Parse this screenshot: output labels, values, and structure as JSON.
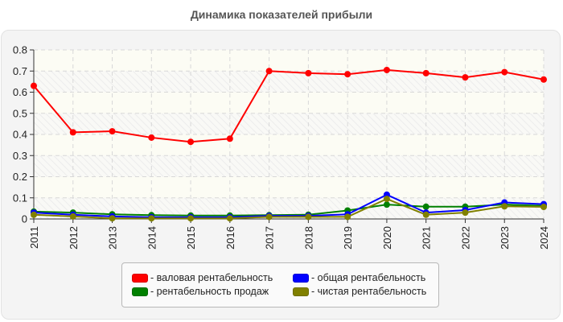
{
  "title": "Динамика показателей прибыли",
  "chart_data": {
    "type": "line",
    "title": "Динамика показателей прибыли",
    "xlabel": "",
    "ylabel": "",
    "ylim": [
      0,
      0.8
    ],
    "yticks": [
      0,
      0.1,
      0.2,
      0.3,
      0.4,
      0.5,
      0.6,
      0.7,
      0.8
    ],
    "ytick_labels": [
      "0",
      "0.1",
      "0.2",
      "0.3",
      "0.4",
      "0.5",
      "0.6",
      "0.7",
      "0.8"
    ],
    "grid": true,
    "legend_position": "bottom",
    "x": [
      "2011",
      "2012",
      "2013",
      "2014",
      "2015",
      "2016",
      "2017",
      "2018",
      "2019",
      "2020",
      "2021",
      "2022",
      "2023",
      "2024"
    ],
    "series": [
      {
        "name": "валовая рентабельность",
        "color": "#ff0000",
        "values": [
          0.63,
          0.41,
          0.415,
          0.385,
          0.365,
          0.38,
          0.7,
          0.69,
          0.685,
          0.705,
          0.69,
          0.67,
          0.695,
          0.66
        ]
      },
      {
        "name": "общая рентабельность",
        "color": "#0000ff",
        "values": [
          0.03,
          0.02,
          0.012,
          0.008,
          0.008,
          0.008,
          0.015,
          0.015,
          0.022,
          0.115,
          0.03,
          0.042,
          0.078,
          0.07
        ]
      },
      {
        "name": "рентабельность продаж",
        "color": "#008000",
        "values": [
          0.035,
          0.03,
          0.022,
          0.018,
          0.016,
          0.016,
          0.018,
          0.02,
          0.04,
          0.068,
          0.058,
          0.058,
          0.068,
          0.062
        ]
      },
      {
        "name": "чистая рентабельность",
        "color": "#808000",
        "values": [
          0.02,
          0.012,
          0.003,
          0.003,
          0.003,
          0.003,
          0.01,
          0.01,
          0.01,
          0.095,
          0.02,
          0.03,
          0.06,
          0.057
        ]
      }
    ]
  },
  "legend": [
    {
      "label": "- валовая рентабельность",
      "color": "#ff0000"
    },
    {
      "label": "- общая рентабельность",
      "color": "#0000ff"
    },
    {
      "label": "- рентабельность продаж",
      "color": "#008000"
    },
    {
      "label": "- чистая рентабельность",
      "color": "#808000"
    }
  ]
}
